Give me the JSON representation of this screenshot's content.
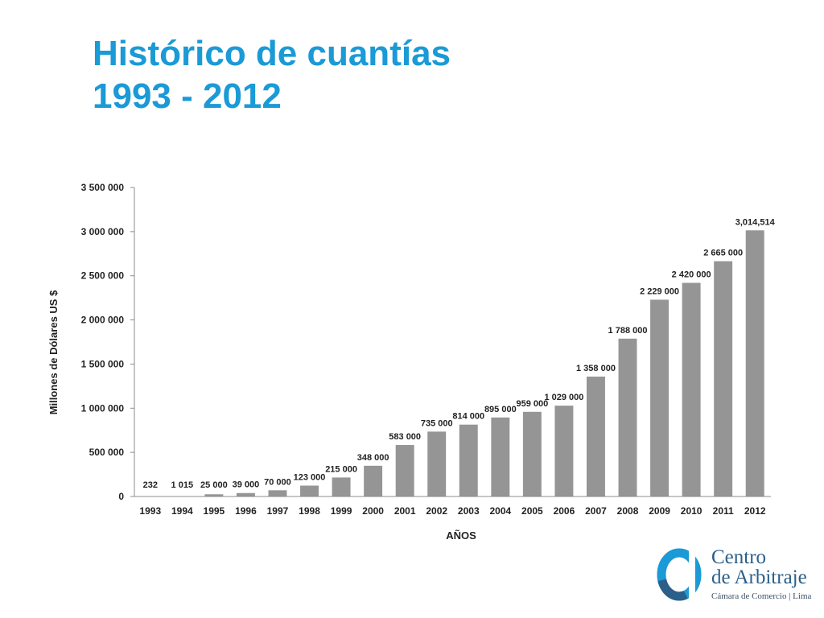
{
  "slide": {
    "title_line1": "Histórico de cuantías",
    "title_line2": "1993 - 2012"
  },
  "colors": {
    "title": "#1a9ad6",
    "bar": "#959595",
    "axis": "#8c8c8c",
    "logo_blue": "#1a9ad6",
    "logo_text": "#2b5f8a"
  },
  "logo": {
    "icon": "circle-ring-logo-icon",
    "line1": "Centro",
    "line2": "de Arbitraje",
    "line3": "Cámara de Comercio | Lima"
  },
  "chart_data": {
    "type": "bar",
    "title": "",
    "xlabel": "AÑOS",
    "ylabel": "Millones de Dólares US $",
    "ylim": [
      0,
      3500000
    ],
    "yticks": [
      0,
      500000,
      1000000,
      1500000,
      2000000,
      2500000,
      3000000,
      3500000
    ],
    "ytick_labels": [
      "0",
      "500 000",
      "1 000 000",
      "1 500 000",
      "2 000 000",
      "2 500 000",
      "3 000 000",
      "3 500 000"
    ],
    "grid": false,
    "legend": "none",
    "categories": [
      "1993",
      "1994",
      "1995",
      "1996",
      "1997",
      "1998",
      "1999",
      "2000",
      "2001",
      "2002",
      "2003",
      "2004",
      "2005",
      "2006",
      "2007",
      "2008",
      "2009",
      "2010",
      "2011",
      "2012"
    ],
    "values": [
      232,
      1015,
      25000,
      39000,
      70000,
      123000,
      215000,
      348000,
      583000,
      735000,
      814000,
      895000,
      959000,
      1029000,
      1358000,
      1788000,
      2229000,
      2420000,
      2665000,
      3014514
    ],
    "data_labels": [
      "232",
      "1 015",
      "25 000",
      "39 000",
      "70 000",
      "123 000",
      "215 000",
      "348 000",
      "583 000",
      "735 000",
      "814 000",
      "895 000",
      "959 000",
      "1 029 000",
      "1 358 000",
      "1 788 000",
      "2 229 000",
      "2 420 000",
      "2 665 000",
      "3,014,514"
    ]
  }
}
